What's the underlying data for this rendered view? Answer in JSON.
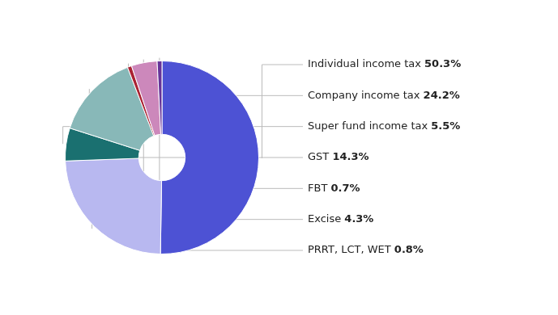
{
  "chart_data": {
    "type": "doughnut",
    "categories": [
      "Individual income tax",
      "Company income tax",
      "Super fund income tax",
      "GST",
      "FBT",
      "Excise",
      "PRRT, LCT, WET"
    ],
    "values": [
      50.3,
      24.2,
      5.5,
      14.3,
      0.7,
      4.3,
      0.8
    ],
    "value_labels": [
      "50.3%",
      "24.2%",
      "5.5%",
      "14.3%",
      "0.7%",
      "4.3%",
      "0.8%"
    ],
    "colors": [
      "#4d52d4",
      "#b8b8f0",
      "#1a7070",
      "#88b8b8",
      "#aa2233",
      "#cc88bb",
      "#663399"
    ],
    "data_labels": true
  }
}
